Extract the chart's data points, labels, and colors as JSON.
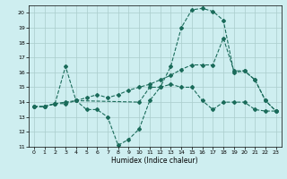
{
  "xlabel": "Humidex (Indice chaleur)",
  "bg_color": "#ceeef0",
  "grid_color": "#aacccc",
  "line_color": "#1a6b5a",
  "xlim": [
    -0.5,
    23.5
  ],
  "ylim": [
    11,
    20.5
  ],
  "xticks": [
    0,
    1,
    2,
    3,
    4,
    5,
    6,
    7,
    8,
    9,
    10,
    11,
    12,
    13,
    14,
    15,
    16,
    17,
    18,
    19,
    20,
    21,
    22,
    23
  ],
  "yticks": [
    11,
    12,
    13,
    14,
    15,
    16,
    17,
    18,
    19,
    20
  ],
  "series": [
    {
      "x": [
        0,
        1,
        2,
        3,
        4,
        5,
        6,
        7,
        8,
        9,
        10,
        11,
        12,
        13,
        14,
        15,
        16,
        17,
        18,
        19,
        20,
        21,
        22,
        23
      ],
      "y": [
        13.7,
        13.7,
        13.9,
        16.4,
        14.1,
        13.5,
        13.5,
        13.0,
        11.1,
        11.5,
        12.2,
        14.1,
        15.0,
        15.2,
        15.0,
        15.0,
        14.1,
        13.5,
        14.0,
        14.0,
        14.0,
        13.5,
        13.4,
        13.4
      ]
    },
    {
      "x": [
        0,
        1,
        2,
        3,
        4,
        5,
        6,
        7,
        8,
        9,
        10,
        11,
        12,
        13,
        14,
        15,
        16,
        17,
        18,
        19,
        20,
        21,
        22,
        23
      ],
      "y": [
        13.7,
        13.7,
        13.9,
        14.0,
        14.1,
        14.3,
        14.5,
        14.3,
        14.5,
        14.8,
        15.0,
        15.2,
        15.5,
        15.8,
        16.2,
        16.5,
        16.5,
        16.5,
        18.3,
        16.1,
        16.1,
        15.5,
        14.1,
        13.4
      ]
    },
    {
      "x": [
        0,
        1,
        2,
        3,
        4,
        10,
        11,
        12,
        13,
        14,
        15,
        16,
        17,
        18,
        19,
        20,
        21,
        22,
        23
      ],
      "y": [
        13.7,
        13.7,
        13.9,
        13.9,
        14.1,
        14.0,
        15.0,
        15.0,
        16.4,
        19.0,
        20.2,
        20.3,
        20.1,
        19.5,
        16.0,
        16.1,
        15.5,
        14.1,
        13.4
      ]
    }
  ]
}
